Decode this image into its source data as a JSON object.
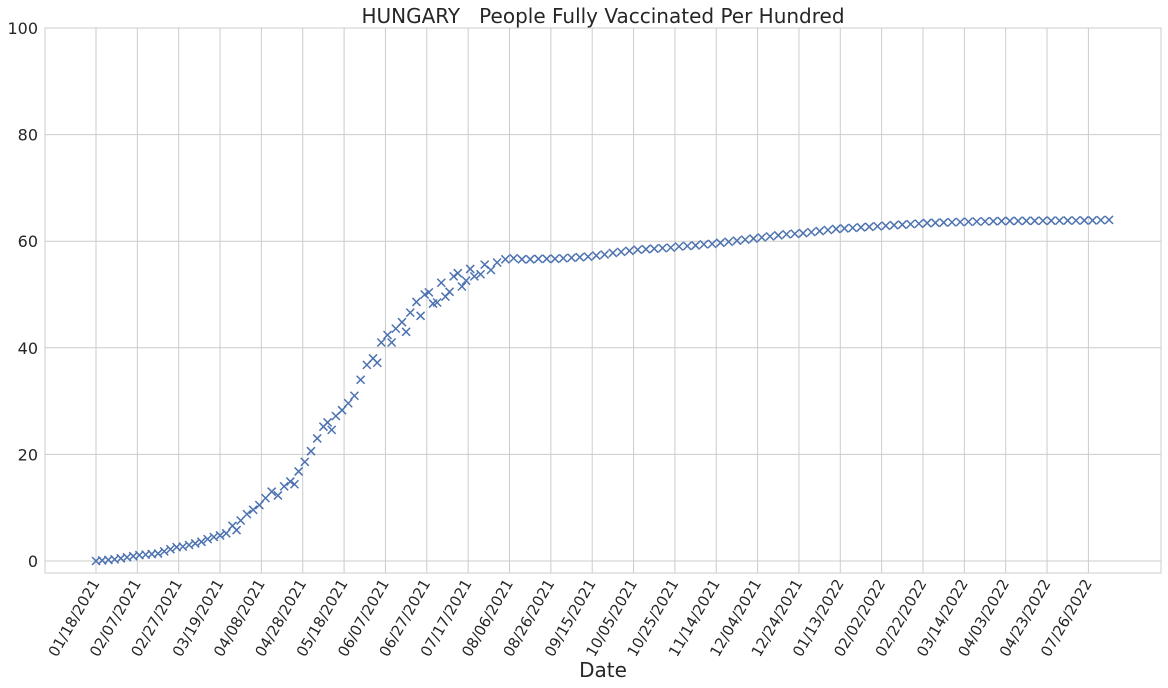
{
  "chart_data": {
    "type": "scatter",
    "title": "HUNGARY   People Fully Vaccinated Per Hundred",
    "xlabel": "Date",
    "ylabel": "",
    "ylim": [
      0,
      100
    ],
    "yticks": [
      0,
      20,
      40,
      60,
      80,
      100
    ],
    "x_tick_labels": [
      "01/18/2021",
      "02/07/2021",
      "02/27/2021",
      "03/19/2021",
      "04/08/2021",
      "04/28/2021",
      "05/18/2021",
      "06/07/2021",
      "06/27/2021",
      "07/17/2021",
      "08/06/2021",
      "08/26/2021",
      "09/15/2021",
      "10/05/2021",
      "10/25/2021",
      "11/14/2021",
      "12/04/2021",
      "12/24/2021",
      "01/13/2022",
      "02/02/2022",
      "02/22/2022",
      "03/14/2022",
      "04/03/2022",
      "04/23/2022",
      "07/26/2022"
    ],
    "grid": true,
    "marker": "x",
    "marker_color": "#4c72b0",
    "series": [
      {
        "name": "",
        "points": [
          [
            "2021-01-18",
            0.0
          ],
          [
            "2021-01-21",
            0.1
          ],
          [
            "2021-01-24",
            0.2
          ],
          [
            "2021-01-27",
            0.3
          ],
          [
            "2021-01-30",
            0.5
          ],
          [
            "2021-02-02",
            0.7
          ],
          [
            "2021-02-05",
            0.9
          ],
          [
            "2021-02-08",
            1.1
          ],
          [
            "2021-02-11",
            1.2
          ],
          [
            "2021-02-14",
            1.3
          ],
          [
            "2021-02-17",
            1.4
          ],
          [
            "2021-02-20",
            1.8
          ],
          [
            "2021-02-23",
            2.2
          ],
          [
            "2021-02-26",
            2.6
          ],
          [
            "2021-03-01",
            2.7
          ],
          [
            "2021-03-04",
            3.0
          ],
          [
            "2021-03-07",
            3.3
          ],
          [
            "2021-03-10",
            3.6
          ],
          [
            "2021-03-13",
            4.1
          ],
          [
            "2021-03-16",
            4.5
          ],
          [
            "2021-03-19",
            4.8
          ],
          [
            "2021-03-22",
            5.2
          ],
          [
            "2021-03-25",
            6.6
          ],
          [
            "2021-03-27",
            5.8
          ],
          [
            "2021-03-29",
            7.6
          ],
          [
            "2021-04-01",
            8.8
          ],
          [
            "2021-04-04",
            9.6
          ],
          [
            "2021-04-07",
            10.5
          ],
          [
            "2021-04-10",
            11.8
          ],
          [
            "2021-04-13",
            13.0
          ],
          [
            "2021-04-16",
            12.3
          ],
          [
            "2021-04-19",
            14.0
          ],
          [
            "2021-04-22",
            14.9
          ],
          [
            "2021-04-24",
            14.4
          ],
          [
            "2021-04-26",
            16.8
          ],
          [
            "2021-04-29",
            18.6
          ],
          [
            "2021-05-02",
            20.6
          ],
          [
            "2021-05-05",
            23.0
          ],
          [
            "2021-05-08",
            25.2
          ],
          [
            "2021-05-10",
            26.0
          ],
          [
            "2021-05-12",
            24.6
          ],
          [
            "2021-05-14",
            27.2
          ],
          [
            "2021-05-17",
            28.3
          ],
          [
            "2021-05-20",
            29.6
          ],
          [
            "2021-05-23",
            31.0
          ],
          [
            "2021-05-26",
            34.0
          ],
          [
            "2021-05-29",
            36.8
          ],
          [
            "2021-06-01",
            38.0
          ],
          [
            "2021-06-03",
            37.2
          ],
          [
            "2021-06-05",
            41.0
          ],
          [
            "2021-06-08",
            42.4
          ],
          [
            "2021-06-10",
            41.0
          ],
          [
            "2021-06-12",
            43.6
          ],
          [
            "2021-06-15",
            44.8
          ],
          [
            "2021-06-17",
            43.0
          ],
          [
            "2021-06-19",
            46.6
          ],
          [
            "2021-06-22",
            48.6
          ],
          [
            "2021-06-24",
            46.0
          ],
          [
            "2021-06-26",
            50.0
          ],
          [
            "2021-06-28",
            50.4
          ],
          [
            "2021-06-30",
            48.3
          ],
          [
            "2021-07-02",
            48.5
          ],
          [
            "2021-07-04",
            52.2
          ],
          [
            "2021-07-06",
            49.6
          ],
          [
            "2021-07-08",
            50.5
          ],
          [
            "2021-07-10",
            53.4
          ],
          [
            "2021-07-12",
            54.0
          ],
          [
            "2021-07-14",
            51.5
          ],
          [
            "2021-07-16",
            52.6
          ],
          [
            "2021-07-18",
            54.8
          ],
          [
            "2021-07-20",
            53.4
          ],
          [
            "2021-07-23",
            53.8
          ],
          [
            "2021-07-25",
            55.6
          ],
          [
            "2021-07-28",
            54.6
          ],
          [
            "2021-07-31",
            56.0
          ],
          [
            "2021-08-04",
            56.6
          ],
          [
            "2021-08-08",
            56.8
          ],
          [
            "2021-08-12",
            56.6
          ],
          [
            "2021-08-16",
            56.6
          ],
          [
            "2021-08-20",
            56.7
          ],
          [
            "2021-08-24",
            56.7
          ],
          [
            "2021-08-28",
            56.7
          ],
          [
            "2021-09-01",
            56.8
          ],
          [
            "2021-09-05",
            56.9
          ],
          [
            "2021-09-09",
            57.0
          ],
          [
            "2021-09-13",
            57.1
          ],
          [
            "2021-09-17",
            57.3
          ],
          [
            "2021-09-21",
            57.5
          ],
          [
            "2021-09-25",
            57.8
          ],
          [
            "2021-09-29",
            58.0
          ],
          [
            "2021-10-03",
            58.2
          ],
          [
            "2021-10-07",
            58.4
          ],
          [
            "2021-10-11",
            58.5
          ],
          [
            "2021-10-15",
            58.6
          ],
          [
            "2021-10-19",
            58.7
          ],
          [
            "2021-10-23",
            58.8
          ],
          [
            "2021-10-27",
            59.0
          ],
          [
            "2021-10-31",
            59.1
          ],
          [
            "2021-11-04",
            59.2
          ],
          [
            "2021-11-08",
            59.4
          ],
          [
            "2021-11-12",
            59.5
          ],
          [
            "2021-11-16",
            59.7
          ],
          [
            "2021-11-20",
            59.9
          ],
          [
            "2021-11-24",
            60.1
          ],
          [
            "2021-11-28",
            60.3
          ],
          [
            "2021-12-02",
            60.5
          ],
          [
            "2021-12-06",
            60.7
          ],
          [
            "2021-12-10",
            60.9
          ],
          [
            "2021-12-14",
            61.1
          ],
          [
            "2021-12-18",
            61.3
          ],
          [
            "2021-12-22",
            61.4
          ],
          [
            "2021-12-26",
            61.5
          ],
          [
            "2021-12-30",
            61.7
          ],
          [
            "2022-01-03",
            61.9
          ],
          [
            "2022-01-07",
            62.1
          ],
          [
            "2022-01-11",
            62.3
          ],
          [
            "2022-01-15",
            62.4
          ],
          [
            "2022-01-19",
            62.5
          ],
          [
            "2022-01-23",
            62.6
          ],
          [
            "2022-01-27",
            62.7
          ],
          [
            "2022-01-31",
            62.8
          ],
          [
            "2022-02-04",
            62.9
          ],
          [
            "2022-02-08",
            63.0
          ],
          [
            "2022-02-12",
            63.1
          ],
          [
            "2022-02-16",
            63.2
          ],
          [
            "2022-02-20",
            63.3
          ],
          [
            "2022-02-24",
            63.4
          ],
          [
            "2022-02-28",
            63.45
          ],
          [
            "2022-03-04",
            63.5
          ],
          [
            "2022-03-08",
            63.55
          ],
          [
            "2022-03-12",
            63.6
          ],
          [
            "2022-03-16",
            63.65
          ],
          [
            "2022-03-20",
            63.7
          ],
          [
            "2022-03-24",
            63.72
          ],
          [
            "2022-03-28",
            63.75
          ],
          [
            "2022-04-01",
            63.78
          ],
          [
            "2022-04-05",
            63.8
          ],
          [
            "2022-04-09",
            63.8
          ],
          [
            "2022-04-13",
            63.82
          ],
          [
            "2022-04-17",
            63.83
          ],
          [
            "2022-04-21",
            63.84
          ],
          [
            "2022-04-25",
            63.85
          ],
          [
            "2022-04-29",
            63.86
          ],
          [
            "2022-05-03",
            63.87
          ],
          [
            "2022-05-07",
            63.88
          ],
          [
            "2022-05-11",
            63.89
          ],
          [
            "2022-05-15",
            63.9
          ],
          [
            "2022-05-19",
            63.95
          ],
          [
            "2022-05-23",
            64.0
          ]
        ]
      }
    ]
  }
}
